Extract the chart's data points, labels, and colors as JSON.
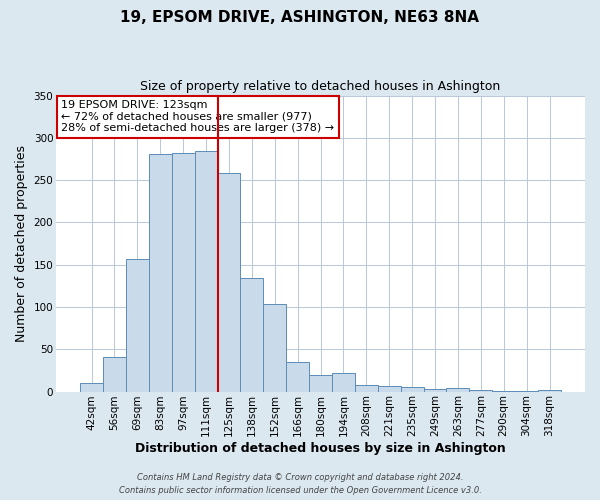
{
  "title": "19, EPSOM DRIVE, ASHINGTON, NE63 8NA",
  "subtitle": "Size of property relative to detached houses in Ashington",
  "xlabel": "Distribution of detached houses by size in Ashington",
  "ylabel": "Number of detached properties",
  "bin_labels": [
    "42sqm",
    "56sqm",
    "69sqm",
    "83sqm",
    "97sqm",
    "111sqm",
    "125sqm",
    "138sqm",
    "152sqm",
    "166sqm",
    "180sqm",
    "194sqm",
    "208sqm",
    "221sqm",
    "235sqm",
    "249sqm",
    "263sqm",
    "277sqm",
    "290sqm",
    "304sqm",
    "318sqm"
  ],
  "bar_values": [
    10,
    41,
    157,
    281,
    282,
    284,
    258,
    134,
    104,
    35,
    19,
    22,
    8,
    7,
    5,
    3,
    4,
    2,
    1,
    1,
    2
  ],
  "bar_color": "#c9daea",
  "bar_edge_color": "#5b8db8",
  "vline_between": [
    5,
    6
  ],
  "vline_color": "#cc0000",
  "ylim": [
    0,
    350
  ],
  "yticks": [
    0,
    50,
    100,
    150,
    200,
    250,
    300,
    350
  ],
  "annotation_title": "19 EPSOM DRIVE: 123sqm",
  "annotation_line1": "← 72% of detached houses are smaller (977)",
  "annotation_line2": "28% of semi-detached houses are larger (378) →",
  "annotation_box_color": "white",
  "annotation_box_edge": "#cc0000",
  "footer1": "Contains HM Land Registry data © Crown copyright and database right 2024.",
  "footer2": "Contains public sector information licensed under the Open Government Licence v3.0.",
  "bg_color": "#dce8f0",
  "plot_bg_color": "white",
  "title_fontsize": 11,
  "subtitle_fontsize": 9,
  "axis_label_fontsize": 9,
  "tick_fontsize": 7.5,
  "annotation_fontsize": 8
}
